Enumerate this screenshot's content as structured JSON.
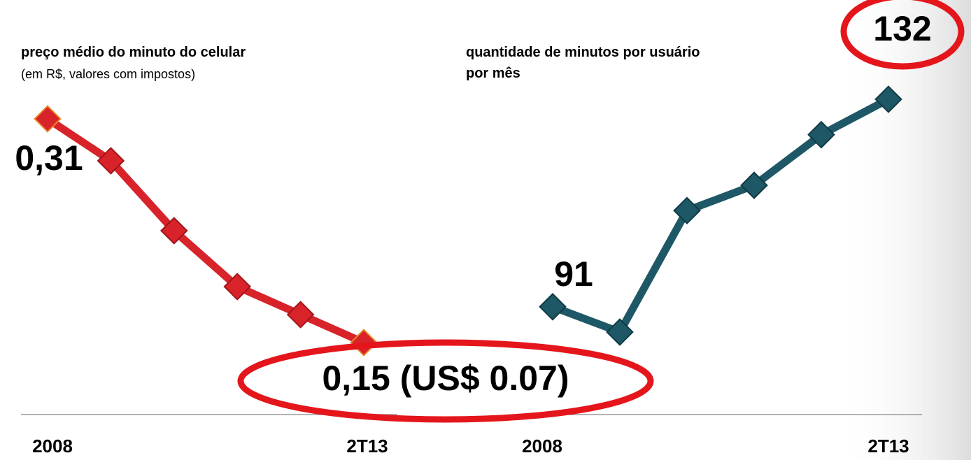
{
  "chart_data": [
    {
      "type": "line",
      "title": "preço médio do minuto do celular",
      "subtitle": "(em R$, valores com impostos)",
      "categories": [
        "2008",
        null,
        null,
        null,
        null,
        "2T13"
      ],
      "values": [
        0.31,
        0.28,
        0.23,
        0.19,
        0.17,
        0.15
      ],
      "value_labels": [
        "0,31",
        null,
        null,
        null,
        null,
        "0,15 (US$ 0.07)"
      ],
      "color": "#d8232a"
    },
    {
      "type": "line",
      "title": "quantidade de minutos por usuário por mês",
      "categories": [
        "2008",
        null,
        null,
        null,
        null,
        "2T13"
      ],
      "values": [
        91,
        86,
        110,
        115,
        125,
        132
      ],
      "value_labels": [
        "91",
        null,
        null,
        null,
        null,
        "132"
      ],
      "color": "#1e5866"
    }
  ]
}
